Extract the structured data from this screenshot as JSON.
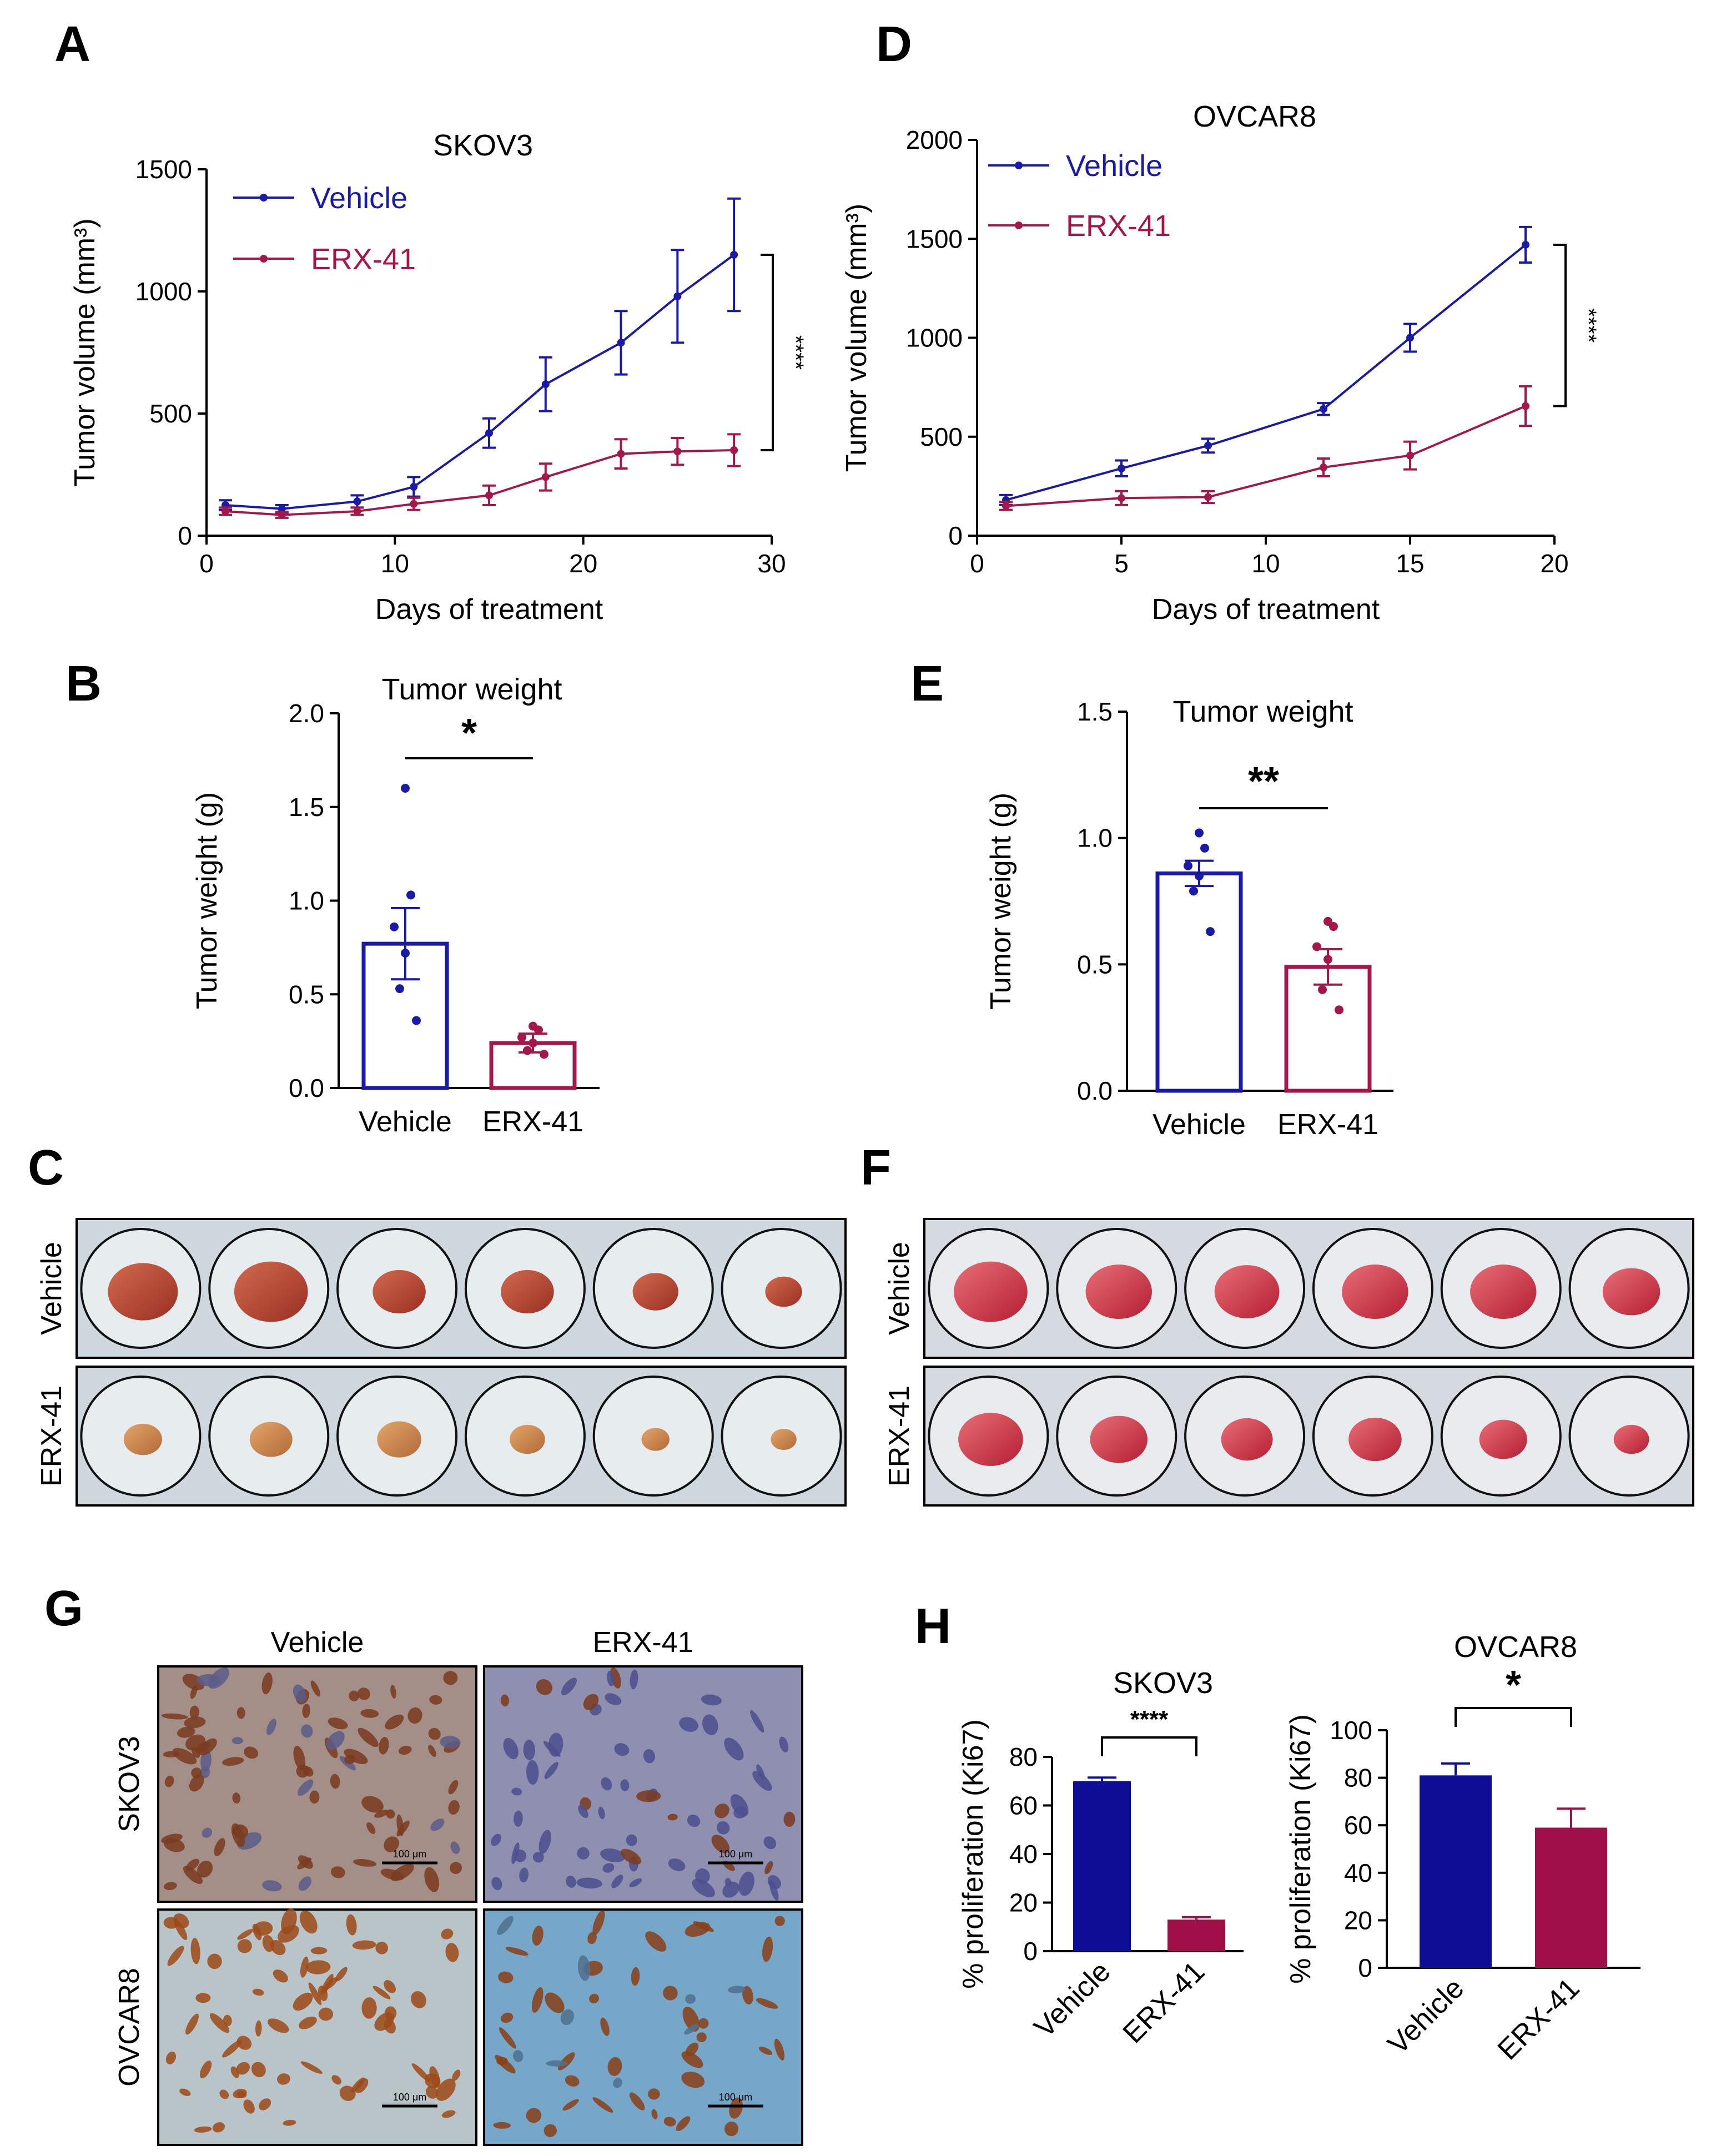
{
  "panel_labels": {
    "a": "A",
    "b": "B",
    "c": "C",
    "d": "D",
    "e": "E",
    "f": "F",
    "g": "G",
    "h": "H"
  },
  "colors": {
    "vehicle": "#1a1aa6",
    "erx": "#a3174a",
    "vehicle_bar_fill": "#0d0d96",
    "erx_bar_fill": "#a01048"
  },
  "chart_data": [
    {
      "id": "A",
      "type": "line",
      "title": "SKOV3",
      "xlabel": "Days of treatment",
      "ylabel": "Tumor volume (mm³)",
      "xlim": [
        0,
        30
      ],
      "ylim": [
        0,
        1500
      ],
      "xticks": [
        0,
        10,
        20,
        30
      ],
      "yticks": [
        0,
        500,
        1000,
        1500
      ],
      "legend": "top-left",
      "significance": "****",
      "series": [
        {
          "name": "Vehicle",
          "x": [
            1,
            4,
            8,
            11,
            15,
            18,
            22,
            25,
            28
          ],
          "y": [
            125,
            110,
            140,
            200,
            420,
            620,
            790,
            980,
            1150
          ],
          "err": [
            20,
            15,
            25,
            40,
            60,
            110,
            130,
            190,
            230
          ]
        },
        {
          "name": "ERX-41",
          "x": [
            1,
            4,
            8,
            11,
            15,
            18,
            22,
            25,
            28
          ],
          "y": [
            100,
            85,
            100,
            130,
            165,
            240,
            335,
            345,
            350
          ],
          "err": [
            15,
            12,
            15,
            25,
            40,
            55,
            60,
            55,
            65
          ]
        }
      ]
    },
    {
      "id": "D",
      "type": "line",
      "title": "OVCAR8",
      "xlabel": "Days of treatment",
      "ylabel": "Tumor volume (mm³)",
      "xlim": [
        0,
        20
      ],
      "ylim": [
        0,
        2000
      ],
      "xticks": [
        0,
        5,
        10,
        15,
        20
      ],
      "yticks": [
        0,
        500,
        1000,
        1500,
        2000
      ],
      "legend": "top-left",
      "significance": "****",
      "series": [
        {
          "name": "Vehicle",
          "x": [
            1,
            5,
            8,
            12,
            15,
            19
          ],
          "y": [
            180,
            340,
            455,
            640,
            1000,
            1470
          ],
          "err": [
            25,
            40,
            35,
            30,
            70,
            90
          ]
        },
        {
          "name": "ERX-41",
          "x": [
            1,
            5,
            8,
            12,
            15,
            19
          ],
          "y": [
            150,
            190,
            195,
            345,
            405,
            655
          ],
          "err": [
            20,
            35,
            30,
            45,
            70,
            100
          ]
        }
      ]
    },
    {
      "id": "B",
      "type": "bar",
      "title": "Tumor weight",
      "ylabel": "Tumor weight (g)",
      "ylim": [
        0,
        2.0
      ],
      "yticks": [
        "0.0",
        "0.5",
        "1.0",
        "1.5",
        "2.0"
      ],
      "categories": [
        "Vehicle",
        "ERX-41"
      ],
      "values": [
        0.77,
        0.24
      ],
      "err": [
        0.19,
        0.05
      ],
      "points": [
        [
          1.6,
          1.03,
          0.86,
          0.72,
          0.53,
          0.36
        ],
        [
          0.33,
          0.31,
          0.27,
          0.24,
          0.2,
          0.18
        ]
      ],
      "significance": "*",
      "style": "outline"
    },
    {
      "id": "E",
      "type": "bar",
      "title": "Tumor weight",
      "ylabel": "Tumor weight (g)",
      "ylim": [
        0,
        1.5
      ],
      "yticks": [
        "0.0",
        "0.5",
        "1.0",
        "1.5"
      ],
      "categories": [
        "Vehicle",
        "ERX-41"
      ],
      "values": [
        0.86,
        0.49
      ],
      "err": [
        0.05,
        0.07
      ],
      "points": [
        [
          1.02,
          0.96,
          0.89,
          0.85,
          0.79,
          0.63
        ],
        [
          0.67,
          0.65,
          0.57,
          0.52,
          0.4,
          0.32
        ]
      ],
      "significance": "**",
      "style": "outline"
    },
    {
      "id": "H1",
      "type": "bar",
      "title": "SKOV3",
      "ylabel": "% proliferation (Ki67)",
      "ylim": [
        0,
        80
      ],
      "yticks": [
        "0",
        "20",
        "40",
        "60",
        "80"
      ],
      "categories": [
        "Vehicle",
        "ERX-41"
      ],
      "values": [
        70,
        13
      ],
      "err": [
        1.5,
        1
      ],
      "significance": "****",
      "style": "filled"
    },
    {
      "id": "H2",
      "type": "bar",
      "title": "OVCAR8",
      "ylabel": "% proliferation (Ki67)",
      "ylim": [
        0,
        100
      ],
      "yticks": [
        "0",
        "20",
        "40",
        "60",
        "80",
        "100"
      ],
      "categories": [
        "Vehicle",
        "ERX-41"
      ],
      "values": [
        81,
        59
      ],
      "err": [
        5,
        8
      ],
      "significance": "*",
      "style": "filled"
    }
  ],
  "photos_C": {
    "rows": [
      "Vehicle",
      "ERX-41"
    ],
    "sizes": [
      [
        0.95,
        1.0,
        0.72,
        0.72,
        0.62,
        0.5
      ],
      [
        0.52,
        0.58,
        0.6,
        0.48,
        0.38,
        0.35
      ]
    ]
  },
  "photos_F": {
    "rows": [
      "Vehicle",
      "ERX-41"
    ],
    "sizes": [
      [
        1.0,
        0.9,
        0.88,
        0.9,
        0.9,
        0.78
      ],
      [
        0.88,
        0.78,
        0.7,
        0.72,
        0.65,
        0.48
      ]
    ]
  },
  "ihc_G": {
    "columns": [
      "Vehicle",
      "ERX-41"
    ],
    "rows": [
      "SKOV3",
      "OVCAR8"
    ],
    "scale_bar": "100 μm"
  }
}
